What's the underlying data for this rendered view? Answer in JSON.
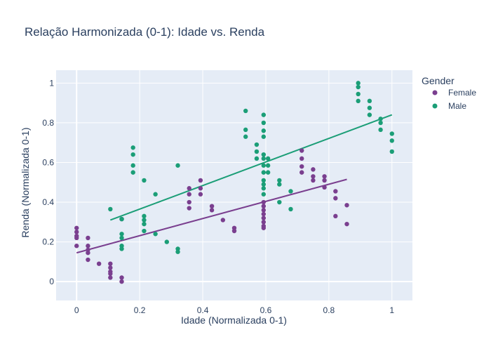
{
  "chart_data": {
    "type": "scatter",
    "title": "Relação Harmonizada (0-1): Idade vs. Renda",
    "xlabel": "Idade (Normalizada 0-1)",
    "ylabel": "Renda (Normalizada 0-1)",
    "xlim": [
      -0.065,
      1.065
    ],
    "ylim": [
      -0.095,
      1.065
    ],
    "xticks": [
      0,
      0.2,
      0.4,
      0.6,
      0.8,
      1
    ],
    "xtick_labels": [
      "0",
      "0.2",
      "0.4",
      "0.6",
      "0.8",
      "1"
    ],
    "yticks": [
      0,
      0.2,
      0.4,
      0.6,
      0.8,
      1
    ],
    "ytick_labels": [
      "0",
      "0.2",
      "0.4",
      "0.6",
      "0.8",
      "1"
    ],
    "grid": true,
    "background": "#e5ecf6",
    "legend": {
      "title": "Gender",
      "position": "top-right"
    },
    "series": [
      {
        "name": "Female",
        "color": "#7a3f8f",
        "points": [
          [
            0,
            0.27
          ],
          [
            0,
            0.25
          ],
          [
            0,
            0.23
          ],
          [
            0,
            0.22
          ],
          [
            0,
            0.18
          ],
          [
            0.036,
            0.22
          ],
          [
            0.036,
            0.18
          ],
          [
            0.036,
            0.16
          ],
          [
            0.036,
            0.145
          ],
          [
            0.036,
            0.11
          ],
          [
            0.071,
            0.09
          ],
          [
            0.107,
            0.09
          ],
          [
            0.107,
            0.07
          ],
          [
            0.107,
            0.05
          ],
          [
            0.107,
            0.04
          ],
          [
            0.107,
            0.02
          ],
          [
            0.143,
            0.315
          ],
          [
            0.143,
            0.02
          ],
          [
            0.143,
            0.0
          ],
          [
            0.357,
            0.47
          ],
          [
            0.357,
            0.44
          ],
          [
            0.357,
            0.4
          ],
          [
            0.357,
            0.37
          ],
          [
            0.393,
            0.51
          ],
          [
            0.393,
            0.47
          ],
          [
            0.393,
            0.44
          ],
          [
            0.429,
            0.38
          ],
          [
            0.429,
            0.36
          ],
          [
            0.464,
            0.31
          ],
          [
            0.5,
            0.27
          ],
          [
            0.5,
            0.255
          ],
          [
            0.593,
            0.4
          ],
          [
            0.593,
            0.38
          ],
          [
            0.593,
            0.36
          ],
          [
            0.593,
            0.34
          ],
          [
            0.593,
            0.32
          ],
          [
            0.593,
            0.3
          ],
          [
            0.593,
            0.28
          ],
          [
            0.593,
            0.27
          ],
          [
            0.714,
            0.66
          ],
          [
            0.714,
            0.62
          ],
          [
            0.714,
            0.58
          ],
          [
            0.714,
            0.55
          ],
          [
            0.75,
            0.565
          ],
          [
            0.75,
            0.53
          ],
          [
            0.75,
            0.51
          ],
          [
            0.786,
            0.53
          ],
          [
            0.786,
            0.51
          ],
          [
            0.786,
            0.475
          ],
          [
            0.821,
            0.455
          ],
          [
            0.821,
            0.42
          ],
          [
            0.821,
            0.33
          ],
          [
            0.857,
            0.385
          ],
          [
            0.857,
            0.29
          ]
        ],
        "trendline": [
          [
            0,
            0.145
          ],
          [
            0.857,
            0.515
          ]
        ]
      },
      {
        "name": "Male",
        "color": "#1b9e77",
        "points": [
          [
            0.107,
            0.365
          ],
          [
            0.143,
            0.315
          ],
          [
            0.143,
            0.24
          ],
          [
            0.143,
            0.22
          ],
          [
            0.143,
            0.18
          ],
          [
            0.143,
            0.165
          ],
          [
            0.179,
            0.675
          ],
          [
            0.179,
            0.64
          ],
          [
            0.179,
            0.585
          ],
          [
            0.179,
            0.55
          ],
          [
            0.214,
            0.51
          ],
          [
            0.214,
            0.33
          ],
          [
            0.214,
            0.31
          ],
          [
            0.214,
            0.29
          ],
          [
            0.214,
            0.255
          ],
          [
            0.25,
            0.44
          ],
          [
            0.25,
            0.24
          ],
          [
            0.286,
            0.2
          ],
          [
            0.321,
            0.585
          ],
          [
            0.321,
            0.165
          ],
          [
            0.321,
            0.15
          ],
          [
            0.536,
            0.86
          ],
          [
            0.536,
            0.765
          ],
          [
            0.536,
            0.73
          ],
          [
            0.571,
            0.69
          ],
          [
            0.571,
            0.655
          ],
          [
            0.571,
            0.62
          ],
          [
            0.593,
            0.84
          ],
          [
            0.593,
            0.8
          ],
          [
            0.593,
            0.76
          ],
          [
            0.593,
            0.73
          ],
          [
            0.593,
            0.64
          ],
          [
            0.593,
            0.62
          ],
          [
            0.593,
            0.585
          ],
          [
            0.593,
            0.55
          ],
          [
            0.593,
            0.51
          ],
          [
            0.593,
            0.49
          ],
          [
            0.593,
            0.47
          ],
          [
            0.593,
            0.44
          ],
          [
            0.607,
            0.62
          ],
          [
            0.607,
            0.585
          ],
          [
            0.607,
            0.55
          ],
          [
            0.643,
            0.51
          ],
          [
            0.643,
            0.49
          ],
          [
            0.643,
            0.4
          ],
          [
            0.679,
            0.455
          ],
          [
            0.679,
            0.365
          ],
          [
            0.893,
            1.0
          ],
          [
            0.893,
            0.98
          ],
          [
            0.893,
            0.945
          ],
          [
            0.893,
            0.91
          ],
          [
            0.929,
            0.91
          ],
          [
            0.929,
            0.875
          ],
          [
            0.929,
            0.84
          ],
          [
            0.964,
            0.82
          ],
          [
            0.964,
            0.8
          ],
          [
            0.964,
            0.765
          ],
          [
            1.0,
            0.745
          ],
          [
            1.0,
            0.71
          ],
          [
            1.0,
            0.655
          ]
        ],
        "trendline": [
          [
            0.107,
            0.31
          ],
          [
            1.0,
            0.84
          ]
        ]
      }
    ]
  }
}
